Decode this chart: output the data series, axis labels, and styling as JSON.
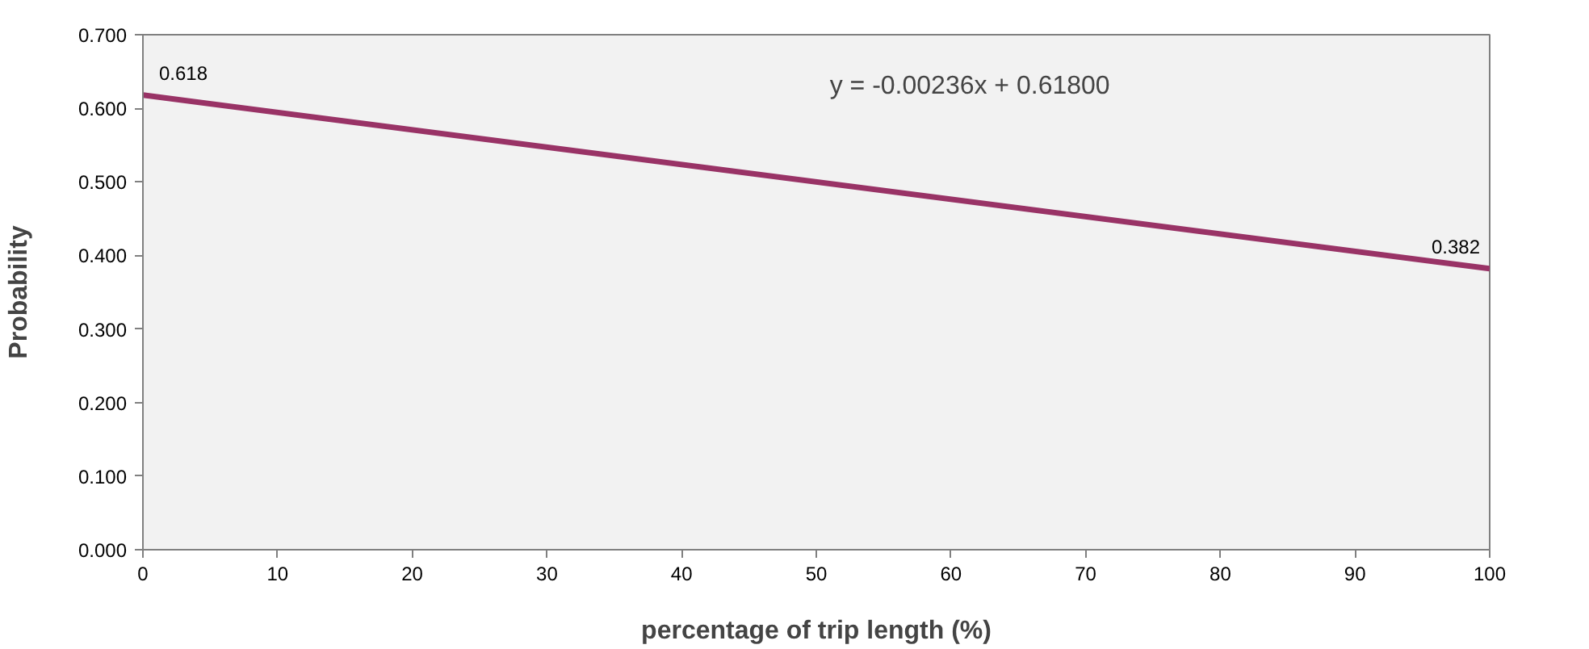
{
  "chart_data": {
    "type": "line",
    "xlabel": "percentage of trip length (%)",
    "ylabel": "Probability",
    "x": [
      0,
      100
    ],
    "series": [
      {
        "color": "#993366",
        "values": [
          0.618,
          0.382
        ]
      }
    ],
    "xlim": [
      0,
      100
    ],
    "ylim": [
      0,
      0.7
    ],
    "xticks": [
      0,
      10,
      20,
      30,
      40,
      50,
      60,
      70,
      80,
      90,
      100
    ],
    "yticks": [
      {
        "value": 0,
        "label": "0.000"
      },
      {
        "value": 0.1,
        "label": "0.100"
      },
      {
        "value": 0.2,
        "label": "0.200"
      },
      {
        "value": 0.3,
        "label": "0.300"
      },
      {
        "value": 0.4,
        "label": "0.400"
      },
      {
        "value": 0.5,
        "label": "0.500"
      },
      {
        "value": 0.6,
        "label": "0.600"
      },
      {
        "value": 0.7,
        "label": "0.700"
      }
    ],
    "annotations": [
      {
        "text": "0.618",
        "x": 0,
        "y": 0.618
      },
      {
        "text": "0.382",
        "x": 100,
        "y": 0.382
      },
      "y = -0.00236x + 0.61800"
    ],
    "grid": false,
    "marker": "none",
    "line_style": "solid"
  }
}
